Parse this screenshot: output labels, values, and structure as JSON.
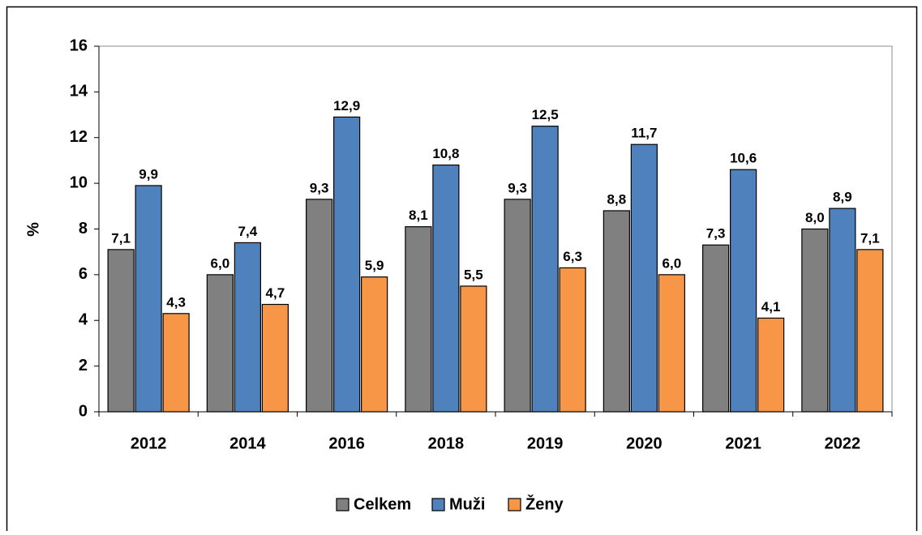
{
  "chart_data": {
    "type": "bar",
    "y_label": "%",
    "categories": [
      "2012",
      "2014",
      "2016",
      "2018",
      "2019",
      "2020",
      "2021",
      "2022"
    ],
    "series": [
      {
        "name": "Celkem",
        "color": "#808080",
        "values": [
          7.1,
          6.0,
          9.3,
          8.1,
          9.3,
          8.8,
          7.3,
          8.0
        ],
        "value_labels": [
          "7,1",
          "6,0",
          "9,3",
          "8,1",
          "9,3",
          "8,8",
          "7,3",
          "8,0"
        ]
      },
      {
        "name": "Muži",
        "color": "#4f81bd",
        "values": [
          9.9,
          7.4,
          12.9,
          10.8,
          12.5,
          11.7,
          10.6,
          8.9
        ],
        "value_labels": [
          "9,9",
          "7,4",
          "12,9",
          "10,8",
          "12,5",
          "11,7",
          "10,6",
          "8,9"
        ]
      },
      {
        "name": "Ženy",
        "color": "#f79646",
        "values": [
          4.3,
          4.7,
          5.9,
          5.5,
          6.3,
          6.0,
          4.1,
          7.1
        ],
        "value_labels": [
          "4,3",
          "4,7",
          "5,9",
          "5,5",
          "6,3",
          "6,0",
          "4,1",
          "7,1"
        ]
      }
    ],
    "ylim": [
      0,
      16
    ],
    "yticks": [
      0,
      2,
      4,
      6,
      8,
      10,
      12,
      14,
      16
    ],
    "legend": "bottom"
  }
}
